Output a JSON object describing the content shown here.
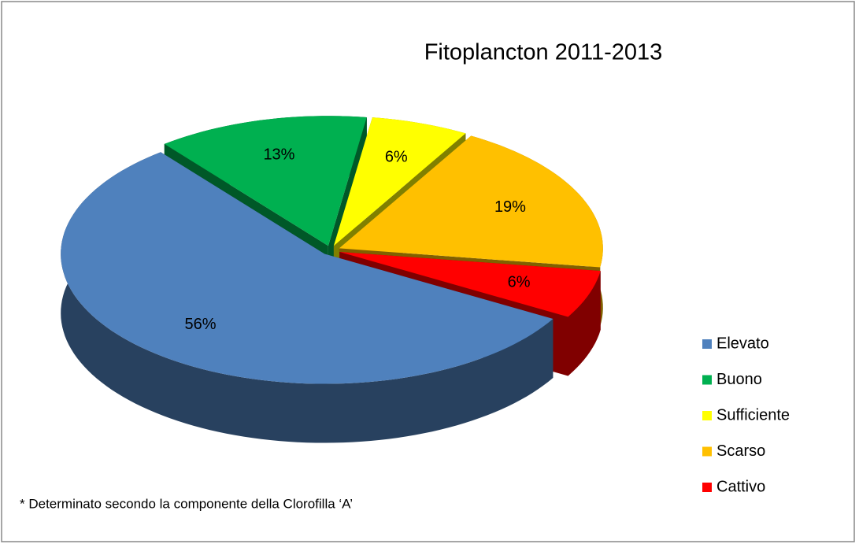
{
  "chart_data": {
    "type": "pie",
    "title": "Fitoplancton 2011-2013",
    "categories": [
      "Elevato",
      "Buono",
      "Sufficiente",
      "Scarso",
      "Cattivo"
    ],
    "values": [
      56,
      13,
      6,
      19,
      6
    ],
    "value_labels": [
      "56%",
      "13%",
      "6%",
      "19%",
      "6%"
    ],
    "colors": [
      "#4f81bd",
      "#00b050",
      "#ffff00",
      "#ffc000",
      "#ff0000"
    ],
    "legend": "right",
    "annotation": "* Determinato secondo la componente della Clorofilla ‘A’"
  }
}
